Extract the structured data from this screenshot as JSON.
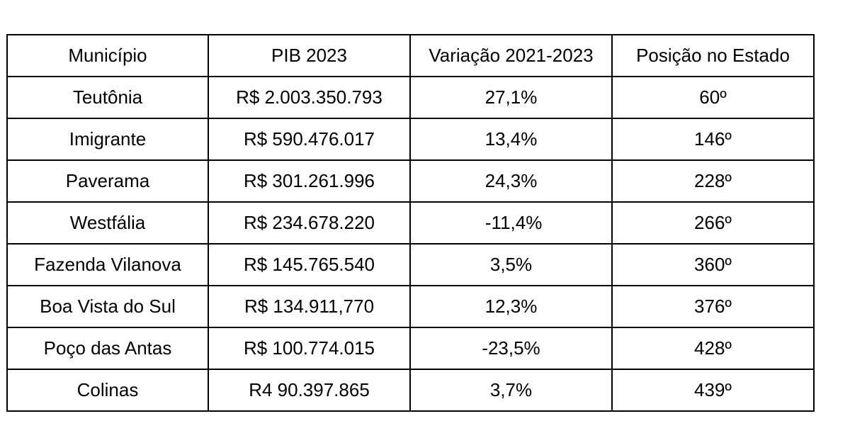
{
  "table": {
    "headers": [
      "Município",
      "PIB 2023",
      "Variação 2021-2023",
      "Posição no Estado"
    ],
    "rows": [
      [
        "Teutônia",
        "R$ 2.003.350.793",
        "27,1%",
        "60º"
      ],
      [
        "Imigrante",
        "R$ 590.476.017",
        "13,4%",
        "146º"
      ],
      [
        "Paverama",
        "R$ 301.261.996",
        "24,3%",
        "228º"
      ],
      [
        "Westfália",
        "R$ 234.678.220",
        " -11,4%",
        "266º"
      ],
      [
        "Fazenda Vilanova",
        "R$ 145.765.540",
        "3,5%",
        "360º"
      ],
      [
        "Boa Vista do Sul",
        "R$ 134.911,770",
        "12,3%",
        "376º"
      ],
      [
        "Poço das Antas",
        "R$ 100.774.015",
        "-23,5%",
        "428º"
      ],
      [
        "Colinas",
        "R4 90.397.865",
        "3,7%",
        "439º"
      ]
    ]
  }
}
